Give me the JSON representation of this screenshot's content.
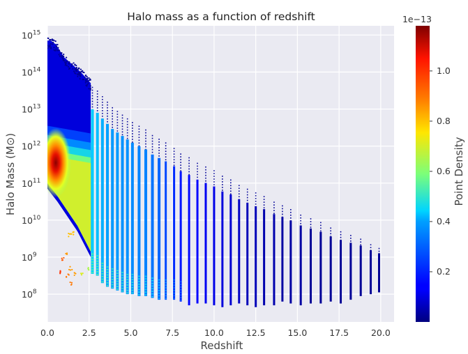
{
  "chart_data": {
    "type": "scatter",
    "title": "Halo mass as a function of redshift",
    "xlabel": "Redshift",
    "ylabel": "Halo Mass (M⊙)",
    "xlim": [
      0.0,
      20.8
    ],
    "ylim_log10": [
      7.25,
      15.25
    ],
    "y_scale": "log",
    "grid": true,
    "x_ticks": [
      {
        "value": 0.0,
        "label": "0.0"
      },
      {
        "value": 2.5,
        "label": "2.5"
      },
      {
        "value": 5.0,
        "label": "5.0"
      },
      {
        "value": 7.5,
        "label": "7.5"
      },
      {
        "value": 10.0,
        "label": "10.0"
      },
      {
        "value": 12.5,
        "label": "12.5"
      },
      {
        "value": 15.0,
        "label": "15.0"
      },
      {
        "value": 17.5,
        "label": "17.5"
      },
      {
        "value": 20.0,
        "label": "20.0"
      }
    ],
    "y_ticks": [
      {
        "exp": 8,
        "base": "10",
        "sup": "8"
      },
      {
        "exp": 9,
        "base": "10",
        "sup": "9"
      },
      {
        "exp": 10,
        "base": "10",
        "sup": "10"
      },
      {
        "exp": 11,
        "base": "10",
        "sup": "11"
      },
      {
        "exp": 12,
        "base": "10",
        "sup": "12"
      },
      {
        "exp": 13,
        "base": "10",
        "sup": "13"
      },
      {
        "exp": 14,
        "base": "10",
        "sup": "14"
      },
      {
        "exp": 15,
        "base": "10",
        "sup": "15"
      }
    ],
    "redshift_columns": [
      {
        "z": 2.7,
        "lo": 8.55,
        "hi": 13.6,
        "c": 0.37
      },
      {
        "z": 3.0,
        "lo": 8.5,
        "hi": 13.5,
        "c": 0.36
      },
      {
        "z": 3.3,
        "lo": 8.3,
        "hi": 13.35,
        "c": 0.35
      },
      {
        "z": 3.6,
        "lo": 8.2,
        "hi": 13.2,
        "c": 0.34
      },
      {
        "z": 3.9,
        "lo": 8.15,
        "hi": 13.05,
        "c": 0.33
      },
      {
        "z": 4.2,
        "lo": 8.1,
        "hi": 12.95,
        "c": 0.33
      },
      {
        "z": 4.5,
        "lo": 8.05,
        "hi": 12.85,
        "c": 0.32
      },
      {
        "z": 4.8,
        "lo": 8.0,
        "hi": 12.75,
        "c": 0.32
      },
      {
        "z": 5.1,
        "lo": 8.0,
        "hi": 12.65,
        "c": 0.31
      },
      {
        "z": 5.5,
        "lo": 7.95,
        "hi": 12.55,
        "c": 0.3
      },
      {
        "z": 5.9,
        "lo": 7.95,
        "hi": 12.45,
        "c": 0.3
      },
      {
        "z": 6.3,
        "lo": 7.9,
        "hi": 12.3,
        "c": 0.28
      },
      {
        "z": 6.7,
        "lo": 7.85,
        "hi": 12.2,
        "c": 0.26
      },
      {
        "z": 7.1,
        "lo": 7.85,
        "hi": 12.1,
        "c": 0.22
      },
      {
        "z": 7.6,
        "lo": 7.85,
        "hi": 11.95,
        "c": 0.18
      },
      {
        "z": 8.0,
        "lo": 7.8,
        "hi": 11.8,
        "c": 0.15
      },
      {
        "z": 8.5,
        "lo": 7.7,
        "hi": 11.7,
        "c": 0.13
      },
      {
        "z": 9.0,
        "lo": 7.75,
        "hi": 11.55,
        "c": 0.11
      },
      {
        "z": 9.5,
        "lo": 7.75,
        "hi": 11.45,
        "c": 0.1
      },
      {
        "z": 10.0,
        "lo": 7.7,
        "hi": 11.35,
        "c": 0.09
      },
      {
        "z": 10.5,
        "lo": 7.65,
        "hi": 11.2,
        "c": 0.08
      },
      {
        "z": 11.0,
        "lo": 7.7,
        "hi": 11.1,
        "c": 0.07
      },
      {
        "z": 11.5,
        "lo": 7.75,
        "hi": 10.95,
        "c": 0.06
      },
      {
        "z": 12.0,
        "lo": 7.7,
        "hi": 10.85,
        "c": 0.05
      },
      {
        "z": 12.5,
        "lo": 7.65,
        "hi": 10.75,
        "c": 0.05
      },
      {
        "z": 13.0,
        "lo": 7.7,
        "hi": 10.65,
        "c": 0.04
      },
      {
        "z": 13.6,
        "lo": 7.7,
        "hi": 10.5,
        "c": 0.04
      },
      {
        "z": 14.1,
        "lo": 7.8,
        "hi": 10.4,
        "c": 0.03
      },
      {
        "z": 14.6,
        "lo": 7.75,
        "hi": 10.3,
        "c": 0.03
      },
      {
        "z": 15.2,
        "lo": 7.7,
        "hi": 10.15,
        "c": 0.03
      },
      {
        "z": 15.8,
        "lo": 7.75,
        "hi": 10.05,
        "c": 0.02
      },
      {
        "z": 16.4,
        "lo": 7.75,
        "hi": 9.95,
        "c": 0.02
      },
      {
        "z": 17.0,
        "lo": 7.8,
        "hi": 9.8,
        "c": 0.02
      },
      {
        "z": 17.6,
        "lo": 7.75,
        "hi": 9.7,
        "c": 0.02
      },
      {
        "z": 18.2,
        "lo": 7.85,
        "hi": 9.6,
        "c": 0.02
      },
      {
        "z": 18.8,
        "lo": 7.95,
        "hi": 9.5,
        "c": 0.02
      },
      {
        "z": 19.4,
        "lo": 8.0,
        "hi": 9.35,
        "c": 0.02
      },
      {
        "z": 19.9,
        "lo": 8.05,
        "hi": 9.25,
        "c": 0.02
      }
    ],
    "low_z_region": {
      "z_range": [
        0.0,
        2.6
      ],
      "upper_edge": [
        [
          0.0,
          14.85
        ],
        [
          0.2,
          14.85
        ],
        [
          0.5,
          14.75
        ],
        [
          1.0,
          14.4
        ],
        [
          1.5,
          14.2
        ],
        [
          2.0,
          14.0
        ],
        [
          2.6,
          13.7
        ]
      ],
      "lower_edge": [
        [
          0.0,
          10.85
        ],
        [
          0.6,
          10.5
        ],
        [
          1.2,
          10.1
        ],
        [
          1.8,
          9.7
        ],
        [
          2.6,
          9.0
        ]
      ],
      "density_peak": {
        "z": 0.5,
        "log10_mass": 11.55
      }
    },
    "sparse_points": [
      {
        "z": 1.3,
        "log10_mass": 9.6,
        "c": 0.68
      },
      {
        "z": 1.5,
        "log10_mass": 9.65,
        "c": 0.68
      },
      {
        "z": 1.1,
        "log10_mass": 9.1,
        "c": 0.72
      },
      {
        "z": 0.9,
        "log10_mass": 8.95,
        "c": 0.8
      },
      {
        "z": 1.4,
        "log10_mass": 8.7,
        "c": 0.72
      },
      {
        "z": 1.2,
        "log10_mass": 8.5,
        "c": 0.76
      },
      {
        "z": 1.4,
        "log10_mass": 8.3,
        "c": 0.76
      },
      {
        "z": 1.6,
        "log10_mass": 8.55,
        "c": 0.72
      },
      {
        "z": 2.1,
        "log10_mass": 8.55,
        "c": 0.6
      },
      {
        "z": 2.4,
        "log10_mass": 8.7,
        "c": 0.55
      },
      {
        "z": 0.7,
        "log10_mass": 8.6,
        "c": 0.85
      }
    ],
    "colorbar": {
      "label": "Point Density",
      "multiplier_label": "1e−13",
      "colormap": "jet",
      "range": [
        0.0,
        1.18
      ],
      "ticks": [
        {
          "value": 0.2,
          "label": "0.2"
        },
        {
          "value": 0.4,
          "label": "0.4"
        },
        {
          "value": 0.6,
          "label": "0.6"
        },
        {
          "value": 0.8,
          "label": "0.8"
        },
        {
          "value": 1.0,
          "label": "1.0"
        }
      ]
    },
    "colors": {
      "background": "#eaeaf2",
      "grid": "#ffffff"
    }
  }
}
